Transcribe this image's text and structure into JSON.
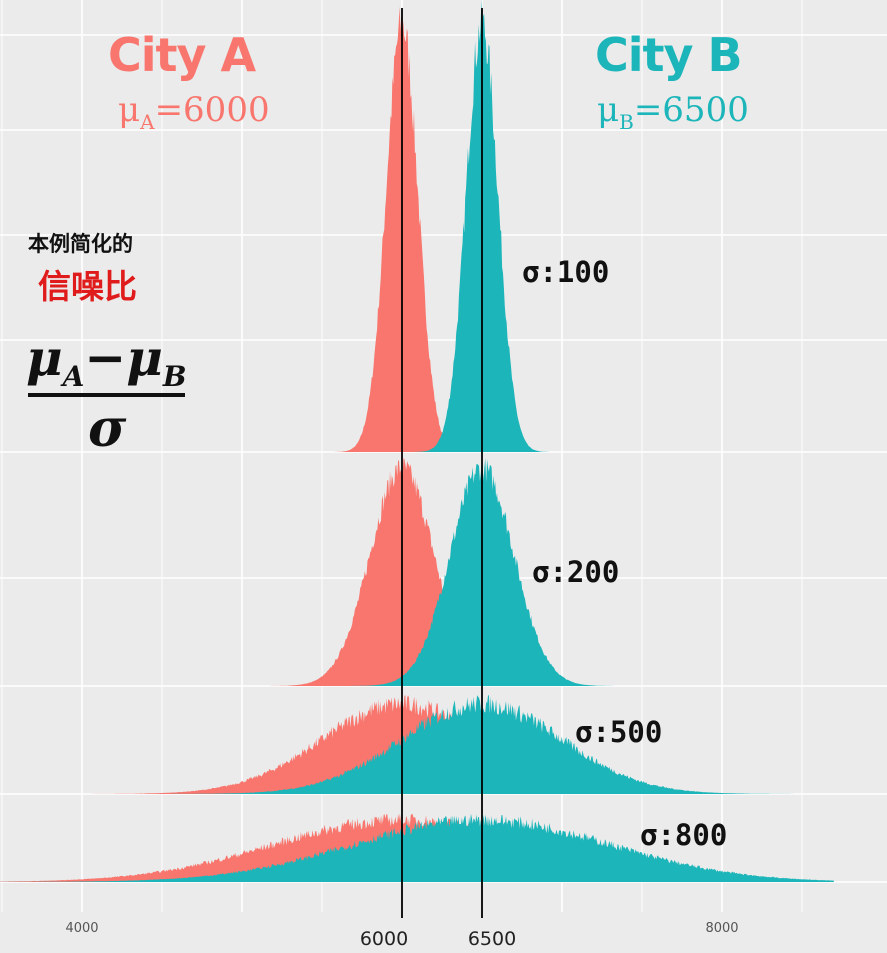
{
  "chart_data": {
    "type": "area",
    "x_range": [
      3000,
      8700
    ],
    "panels": [
      {
        "sigma": 100,
        "label": "σ:100",
        "series": [
          {
            "mean": 6000,
            "sd": 100
          },
          {
            "mean": 6500,
            "sd": 100
          }
        ]
      },
      {
        "sigma": 200,
        "label": "σ:200",
        "series": [
          {
            "mean": 6000,
            "sd": 200
          },
          {
            "mean": 6500,
            "sd": 200
          }
        ]
      },
      {
        "sigma": 500,
        "label": "σ:500",
        "series": [
          {
            "mean": 6000,
            "sd": 500
          },
          {
            "mean": 6500,
            "sd": 500
          }
        ]
      },
      {
        "sigma": 800,
        "label": "σ:800",
        "series": [
          {
            "mean": 6000,
            "sd": 800
          },
          {
            "mean": 6500,
            "sd": 800
          }
        ]
      }
    ],
    "vlines": [
      6000,
      6500
    ],
    "x_ticks_small": [
      "4000",
      "8000"
    ],
    "x_ticks_small_values": [
      4000,
      8000
    ],
    "x_ticks_large": [
      "6000",
      "6500"
    ],
    "x_ticks_large_values": [
      6000,
      6500
    ],
    "grid": true
  },
  "colors": {
    "city_a": "#f8766d",
    "city_b": "#1cb5b9",
    "background": "#ebebeb",
    "grid": "#ffffff"
  },
  "labels": {
    "city_a": "City A",
    "city_b": "City B",
    "mu_a_symbol": "μ",
    "mu_a_sub": "A",
    "mu_a_value": "=6000",
    "mu_b_symbol": "μ",
    "mu_b_sub": "B",
    "mu_b_value": "=6500",
    "note_line1": "本例简化的",
    "note_line2": "信噪比",
    "formula_mu": "μ",
    "formula_a": "A",
    "formula_minus": "−",
    "formula_b": "B",
    "formula_sigma": "σ"
  }
}
